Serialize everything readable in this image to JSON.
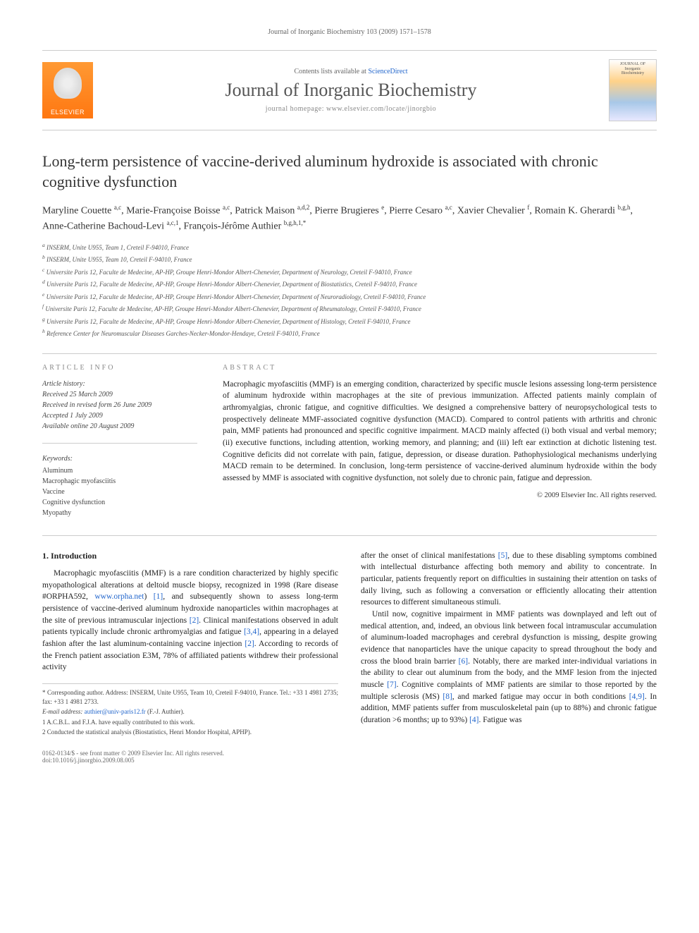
{
  "running_header": "Journal of Inorganic Biochemistry 103 (2009) 1571–1578",
  "masthead": {
    "publisher_name": "ELSEVIER",
    "contents_prefix": "Contents lists available at ",
    "contents_link": "ScienceDirect",
    "journal_title": "Journal of Inorganic Biochemistry",
    "homepage_label": "journal homepage: www.elsevier.com/locate/jinorgbio",
    "cover_label_top": "JOURNAL OF",
    "cover_label_mid": "Inorganic",
    "cover_label_bot": "Biochemistry"
  },
  "article": {
    "title": "Long-term persistence of vaccine-derived aluminum hydroxide is associated with chronic cognitive dysfunction",
    "authors_html": "Maryline Couette <sup>a,c</sup>, Marie-Françoise Boisse <sup>a,c</sup>, Patrick Maison <sup>a,d,2</sup>, Pierre Brugieres <sup>e</sup>, Pierre Cesaro <sup>a,c</sup>, Xavier Chevalier <sup>f</sup>, Romain K. Gherardi <sup>b,g,h</sup>, Anne-Catherine Bachoud-Levi <sup>a,c,1</sup>, François-Jérôme Authier <sup>b,g,h,1,*</sup>"
  },
  "affiliations": [
    "a INSERM, Unite U955, Team 1, Creteil F-94010, France",
    "b INSERM, Unite U955, Team 10, Creteil F-94010, France",
    "c Universite Paris 12, Faculte de Medecine, AP-HP, Groupe Henri-Mondor Albert-Chenevier, Department of Neurology, Creteil F-94010, France",
    "d Universite Paris 12, Faculte de Medecine, AP-HP, Groupe Henri-Mondor Albert-Chenevier, Department of Biostatistics, Creteil F-94010, France",
    "e Universite Paris 12, Faculte de Medecine, AP-HP, Groupe Henri-Mondor Albert-Chenevier, Department of Neuroradiology, Creteil F-94010, France",
    "f Universite Paris 12, Faculte de Medecine, AP-HP, Groupe Henri-Mondor Albert-Chenevier, Department of Rheumatology, Creteil F-94010, France",
    "g Universite Paris 12, Faculte de Medecine, AP-HP, Groupe Henri-Mondor Albert-Chenevier, Department of Histology, Creteil F-94010, France",
    "h Reference Center for Neuromuscular Diseases Garches-Necker-Mondor-Hendaye, Creteil F-94010, France"
  ],
  "info": {
    "section_label": "article info",
    "history_label": "Article history:",
    "history": [
      "Received 25 March 2009",
      "Received in revised form 26 June 2009",
      "Accepted 1 July 2009",
      "Available online 20 August 2009"
    ],
    "keywords_label": "Keywords:",
    "keywords": [
      "Aluminum",
      "Macrophagic myofasciitis",
      "Vaccine",
      "Cognitive dysfunction",
      "Myopathy"
    ]
  },
  "abstract": {
    "section_label": "abstract",
    "text": "Macrophagic myofasciitis (MMF) is an emerging condition, characterized by specific muscle lesions assessing long-term persistence of aluminum hydroxide within macrophages at the site of previous immunization. Affected patients mainly complain of arthromyalgias, chronic fatigue, and cognitive difficulties. We designed a comprehensive battery of neuropsychological tests to prospectively delineate MMF-associated cognitive dysfunction (MACD). Compared to control patients with arthritis and chronic pain, MMF patients had pronounced and specific cognitive impairment. MACD mainly affected (i) both visual and verbal memory; (ii) executive functions, including attention, working memory, and planning; and (iii) left ear extinction at dichotic listening test. Cognitive deficits did not correlate with pain, fatigue, depression, or disease duration. Pathophysiological mechanisms underlying MACD remain to be determined. In conclusion, long-term persistence of vaccine-derived aluminum hydroxide within the body assessed by MMF is associated with cognitive dysfunction, not solely due to chronic pain, fatigue and depression.",
    "copyright": "© 2009 Elsevier Inc. All rights reserved."
  },
  "body": {
    "heading": "1. Introduction",
    "col1_p1_a": "Macrophagic myofasciitis (MMF) is a rare condition characterized by highly specific myopathological alterations at deltoid muscle biopsy, recognized in 1998 (Rare disease #ORPHA592, ",
    "col1_link1": "www.orpha.net",
    "col1_p1_b": ") ",
    "col1_ref1": "[1]",
    "col1_p1_c": ", and subsequently shown to assess long-term persistence of vaccine-derived aluminum hydroxide nanoparticles within macrophages at the site of previous intramuscular injections ",
    "col1_ref2": "[2]",
    "col1_p1_d": ". Clinical manifestations observed in adult patients typically include chronic arthromyalgias and fatigue ",
    "col1_ref3": "[3,4]",
    "col1_p1_e": ", appearing in a delayed fashion after the last aluminum-containing vaccine injection ",
    "col1_ref4": "[2]",
    "col1_p1_f": ". According to records of the French patient association E3M, 78% of affiliated patients withdrew their professional activity",
    "col2_p1_a": "after the onset of clinical manifestations ",
    "col2_ref1": "[5]",
    "col2_p1_b": ", due to these disabling symptoms combined with intellectual disturbance affecting both memory and ability to concentrate. In particular, patients frequently report on difficulties in sustaining their attention on tasks of daily living, such as following a conversation or efficiently allocating their attention resources to different simultaneous stimuli.",
    "col2_p2_a": "Until now, cognitive impairment in MMF patients was downplayed and left out of medical attention, and, indeed, an obvious link between focal intramuscular accumulation of aluminum-loaded macrophages and cerebral dysfunction is missing, despite growing evidence that nanoparticles have the unique capacity to spread throughout the body and cross the blood brain barrier ",
    "col2_ref2": "[6]",
    "col2_p2_b": ". Notably, there are marked inter-individual variations in the ability to clear out aluminum from the body, and the MMF lesion from the injected muscle ",
    "col2_ref3": "[7]",
    "col2_p2_c": ". Cognitive complaints of MMF patients are similar to those reported by the multiple sclerosis (MS) ",
    "col2_ref4": "[8]",
    "col2_p2_d": ", and marked fatigue may occur in both conditions ",
    "col2_ref5": "[4,9]",
    "col2_p2_e": ". In addition, MMF patients suffer from musculoskeletal pain (up to 88%) and chronic fatigue (duration >6 months; up to 93%) ",
    "col2_ref6": "[4]",
    "col2_p2_f": ". Fatigue was"
  },
  "footnotes": {
    "corr": "* Corresponding author. Address: INSERM, Unite U955, Team 10, Creteil F-94010, France. Tel.: +33 1 4981 2735; fax: +33 1 4981 2733.",
    "email_label": "E-mail address: ",
    "email": "authier@univ-paris12.fr",
    "email_suffix": " (F.-J. Authier).",
    "n1": "1 A.C.B.L. and F.J.A. have equally contributed to this work.",
    "n2": "2 Conducted the statistical analysis (Biostatistics, Henri Mondor Hospital, APHP)."
  },
  "footer": {
    "left_a": "0162-0134/$ - see front matter © 2009 Elsevier Inc. All rights reserved.",
    "left_b": "doi:10.1016/j.jinorgbio.2009.08.005"
  },
  "colors": {
    "link": "#2266cc",
    "text": "#222222",
    "muted": "#666666",
    "rule": "#cccccc",
    "logo_grad_top": "#ff9933",
    "logo_grad_bot": "#ff7711"
  },
  "typography": {
    "body_fontsize_pt": 11.5,
    "title_fontsize_pt": 22,
    "journal_title_fontsize_pt": 26,
    "footnote_fontsize_pt": 9,
    "affiliation_fontsize_pt": 9
  }
}
